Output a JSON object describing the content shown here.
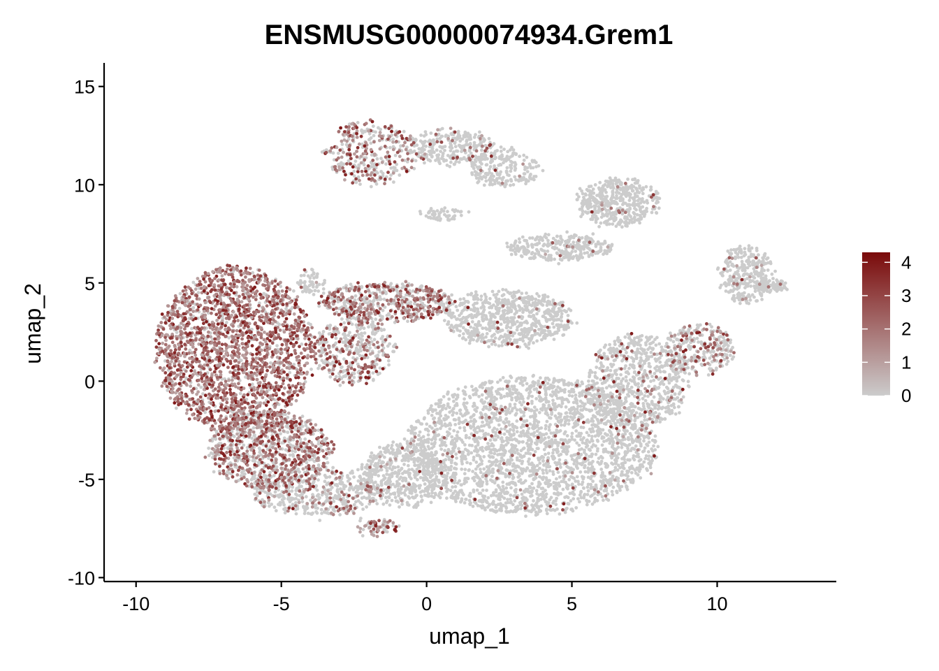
{
  "chart_data": {
    "type": "scatter",
    "title": "ENSMUSG00000074934.Grem1",
    "xlabel": "umap_1",
    "ylabel": "umap_2",
    "xlim": [
      -11.1,
      14.1
    ],
    "ylim": [
      -10.2,
      16.2
    ],
    "x_ticks": [
      -10,
      -5,
      0,
      5,
      10
    ],
    "y_ticks": [
      -10,
      -5,
      0,
      5,
      10,
      15
    ],
    "x_tick_labels": [
      "-10",
      "-5",
      "0",
      "5",
      "10"
    ],
    "y_tick_labels": [
      "-10",
      "-5",
      "0",
      "5",
      "10",
      "15"
    ],
    "grid": false,
    "legend_position": "right",
    "color_scale": {
      "low_color": "#cccccc",
      "high_color": "#7a0a0a",
      "min": 0,
      "max": 4.3,
      "breaks": [
        0,
        1,
        2,
        3,
        4
      ],
      "labels": [
        "0",
        "1",
        "2",
        "3",
        "4"
      ]
    },
    "regions": [
      {
        "name": "left-dense",
        "cx": -6.6,
        "cy": 1.6,
        "rx": 2.7,
        "ry": 4.2,
        "n": 2200,
        "expr": 0.85
      },
      {
        "name": "left-lower",
        "cx": -5.4,
        "cy": -3.5,
        "rx": 2.1,
        "ry": 2.0,
        "n": 900,
        "expr": 0.55
      },
      {
        "name": "left-bottom",
        "cx": -3.8,
        "cy": -5.6,
        "rx": 2.2,
        "ry": 1.3,
        "n": 500,
        "expr": 0.2
      },
      {
        "name": "mid-upper-band",
        "cx": -1.4,
        "cy": 4.0,
        "rx": 2.3,
        "ry": 1.0,
        "n": 600,
        "expr": 0.55
      },
      {
        "name": "mid-left-band",
        "cx": -2.5,
        "cy": 1.5,
        "rx": 1.4,
        "ry": 1.6,
        "n": 400,
        "expr": 0.4
      },
      {
        "name": "center-mid",
        "cx": 2.8,
        "cy": 3.2,
        "rx": 2.2,
        "ry": 1.4,
        "n": 700,
        "expr": 0.03
      },
      {
        "name": "center-main",
        "cx": 3.6,
        "cy": -3.3,
        "rx": 4.3,
        "ry": 3.5,
        "n": 2600,
        "expr": 0.04
      },
      {
        "name": "center-lower-left",
        "cx": -0.8,
        "cy": -4.8,
        "rx": 1.5,
        "ry": 1.6,
        "n": 500,
        "expr": 0.03
      },
      {
        "name": "right-band",
        "cx": 7.3,
        "cy": 0.0,
        "rx": 1.7,
        "ry": 2.4,
        "n": 700,
        "expr": 0.12
      },
      {
        "name": "right-arm",
        "cx": 9.4,
        "cy": 1.6,
        "rx": 1.2,
        "ry": 1.3,
        "n": 300,
        "expr": 0.35
      },
      {
        "name": "top-right-cluster",
        "cx": 6.6,
        "cy": 9.1,
        "rx": 1.4,
        "ry": 1.2,
        "n": 450,
        "expr": 0.03
      },
      {
        "name": "diagonal-stream",
        "cx": 4.6,
        "cy": 6.8,
        "rx": 1.8,
        "ry": 0.7,
        "n": 300,
        "expr": 0.03
      },
      {
        "name": "far-right-cluster",
        "cx": 11.0,
        "cy": 5.4,
        "rx": 0.9,
        "ry": 1.5,
        "n": 300,
        "expr": 0.04
      },
      {
        "name": "far-right-tail",
        "cx": 11.9,
        "cy": 4.8,
        "rx": 0.5,
        "ry": 0.3,
        "n": 80,
        "expr": 0.03
      },
      {
        "name": "top-strand-left",
        "cx": -1.9,
        "cy": 11.6,
        "rx": 1.6,
        "ry": 1.6,
        "n": 350,
        "expr": 0.45
      },
      {
        "name": "top-strand-mid",
        "cx": 0.9,
        "cy": 11.9,
        "rx": 1.5,
        "ry": 0.9,
        "n": 300,
        "expr": 0.12
      },
      {
        "name": "top-strand-right",
        "cx": 2.7,
        "cy": 10.8,
        "rx": 1.2,
        "ry": 0.9,
        "n": 200,
        "expr": 0.06
      },
      {
        "name": "small-island",
        "cx": 0.6,
        "cy": 8.5,
        "rx": 0.8,
        "ry": 0.3,
        "n": 50,
        "expr": 0.02
      },
      {
        "name": "bottom-spur",
        "cx": -1.7,
        "cy": -7.4,
        "rx": 0.7,
        "ry": 0.4,
        "n": 70,
        "expr": 0.6
      },
      {
        "name": "upper-left-spike",
        "cx": -4.0,
        "cy": 5.0,
        "rx": 0.4,
        "ry": 0.7,
        "n": 60,
        "expr": 0.05
      }
    ]
  }
}
